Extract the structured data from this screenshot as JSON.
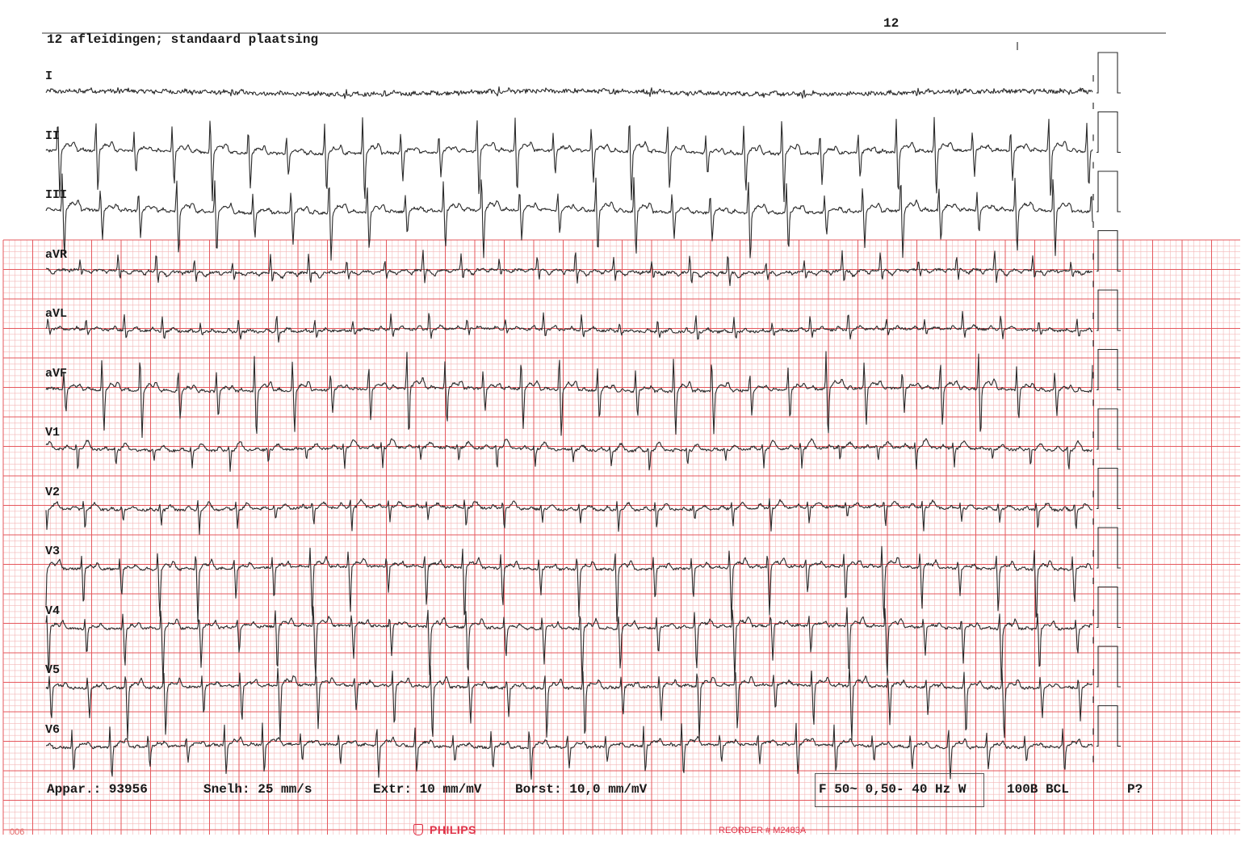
{
  "page_number": "12",
  "header_title": "12 afleidingen; standaard plaatsing",
  "leads": [
    {
      "label": "I",
      "morphology": "low"
    },
    {
      "label": "II",
      "morphology": "inferior"
    },
    {
      "label": "III",
      "morphology": "inferior"
    },
    {
      "label": "aVR",
      "morphology": "avr"
    },
    {
      "label": "aVL",
      "morphology": "avl"
    },
    {
      "label": "aVF",
      "morphology": "inferior"
    },
    {
      "label": "V1",
      "morphology": "v1"
    },
    {
      "label": "V2",
      "morphology": "v2"
    },
    {
      "label": "V3",
      "morphology": "precordial"
    },
    {
      "label": "V4",
      "morphology": "precordial"
    },
    {
      "label": "V5",
      "morphology": "precordial"
    },
    {
      "label": "V6",
      "morphology": "v6"
    }
  ],
  "footer": {
    "device": "Appar.: 93956",
    "speed": "Snelh: 25 mm/s",
    "limb_gain": "Extr: 10 mm/mV",
    "chest_gain": "Borst: 10,0 mm/mV",
    "filter": "F 50~ 0,50- 40 Hz W",
    "rhythm": "100B BCL",
    "p_flag": "P?"
  },
  "paper": {
    "code": "006",
    "brand": "PHILIPS",
    "reorder": "REORDER # M2483A"
  },
  "colors": {
    "grid_minor": "#f4b8b8",
    "grid_major": "#e5585d",
    "trace": "#2a2a2a",
    "brand": "#e0344a"
  }
}
